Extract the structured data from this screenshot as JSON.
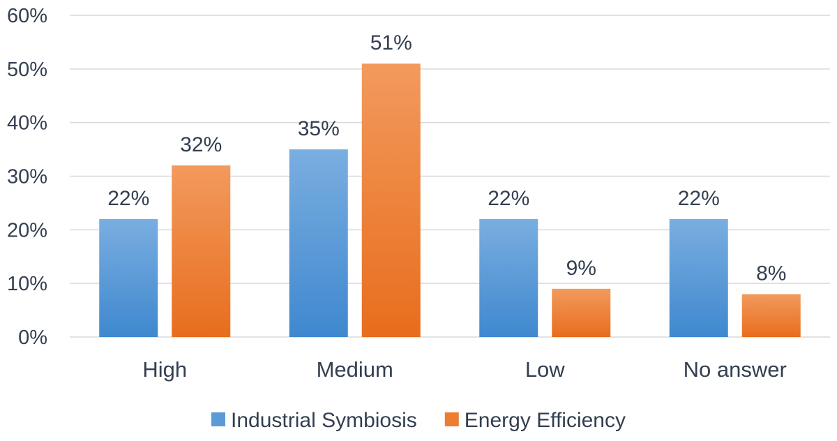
{
  "chart_data": {
    "type": "bar",
    "title": "",
    "xlabel": "",
    "ylabel": "",
    "categories": [
      "High",
      "Medium",
      "Low",
      "No answer"
    ],
    "series": [
      {
        "name": "Industrial Symbiosis",
        "values": [
          22,
          35,
          22,
          22
        ],
        "value_labels": [
          "22%",
          "35%",
          "22%",
          "22%"
        ],
        "color": "#5b9bd5"
      },
      {
        "name": "Energy Efficiency",
        "values": [
          32,
          51,
          9,
          8
        ],
        "value_labels": [
          "32%",
          "51%",
          "9%",
          "8%"
        ],
        "color": "#ed7d31"
      }
    ],
    "ylim": [
      0,
      60
    ],
    "yticks": [
      0,
      10,
      20,
      30,
      40,
      50,
      60
    ],
    "ytick_labels": [
      "0%",
      "10%",
      "20%",
      "30%",
      "40%",
      "50%",
      "60%"
    ],
    "grid": true,
    "legend": "bottom-center"
  }
}
